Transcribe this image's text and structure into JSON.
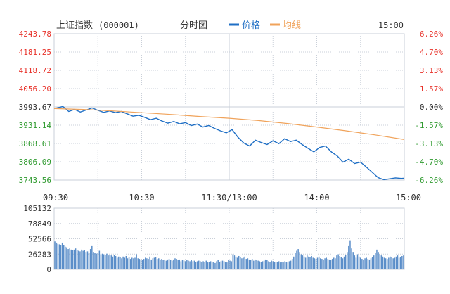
{
  "header": {
    "title": "上证指数",
    "code": "(000001)",
    "mode": "分时图",
    "legend_price": "价格",
    "legend_avg": "均线",
    "time": "15:00"
  },
  "colors": {
    "price_line": "#1f6fc5",
    "avg_line": "#f0a35b",
    "up_label": "#e8322a",
    "down_label": "#2f9a2f",
    "neutral_label": "#333333",
    "grid": "#c9cfd8",
    "volume_bar": "#5b8ec9"
  },
  "chart_data": [
    {
      "type": "line",
      "y_ticks_left": [
        "4243.78",
        "4181.25",
        "4118.72",
        "4056.20",
        "3993.67",
        "3931.14",
        "3868.61",
        "3806.09",
        "3743.56"
      ],
      "y_ticks_right": [
        "6.26%",
        "4.70%",
        "3.13%",
        "1.57%",
        "0.00%",
        "-1.57%",
        "-3.13%",
        "-4.70%",
        "-6.26%"
      ],
      "x_ticks": [
        "09:30",
        "10:30",
        "11:30/13:00",
        "14:00",
        "15:00"
      ],
      "ylim": [
        3743.56,
        4243.78
      ],
      "xlim": [
        0,
        240
      ],
      "series": [
        {
          "name": "价格",
          "x": [
            0,
            6,
            10,
            14,
            18,
            22,
            26,
            30,
            34,
            38,
            42,
            46,
            50,
            54,
            58,
            62,
            66,
            70,
            74,
            78,
            82,
            86,
            90,
            94,
            98,
            102,
            106,
            110,
            114,
            118,
            122,
            126,
            130,
            134,
            138,
            142,
            146,
            150,
            154,
            158,
            162,
            166,
            170,
            174,
            178,
            182,
            186,
            190,
            194,
            198,
            202,
            206,
            210,
            214,
            218,
            222,
            226,
            230,
            234,
            238,
            240
          ],
          "y": [
            3988,
            3995,
            3978,
            3985,
            3976,
            3983,
            3990,
            3982,
            3975,
            3980,
            3974,
            3978,
            3970,
            3962,
            3965,
            3958,
            3950,
            3955,
            3945,
            3938,
            3944,
            3936,
            3940,
            3930,
            3935,
            3925,
            3930,
            3920,
            3912,
            3905,
            3916,
            3890,
            3870,
            3860,
            3880,
            3872,
            3865,
            3878,
            3868,
            3885,
            3875,
            3880,
            3865,
            3852,
            3840,
            3855,
            3860,
            3840,
            3826,
            3805,
            3815,
            3800,
            3805,
            3788,
            3770,
            3752,
            3745,
            3748,
            3751,
            3749,
            3750
          ]
        },
        {
          "name": "均线",
          "x": [
            0,
            20,
            40,
            60,
            80,
            100,
            120,
            140,
            160,
            180,
            200,
            220,
            240
          ],
          "y": [
            3988,
            3985,
            3980,
            3974,
            3968,
            3961,
            3955,
            3947,
            3937,
            3925,
            3912,
            3898,
            3882
          ]
        }
      ]
    },
    {
      "type": "bar",
      "y_ticks": [
        "105132",
        "78849",
        "52566",
        "26283",
        "0"
      ],
      "ylim": [
        0,
        105132
      ],
      "xlim": [
        0,
        240
      ],
      "values": [
        48000,
        46000,
        44000,
        43000,
        42000,
        46000,
        42000,
        39000,
        38000,
        35000,
        36000,
        34000,
        33000,
        34000,
        36000,
        33000,
        32000,
        31000,
        34000,
        32000,
        33000,
        30000,
        31000,
        29000,
        35000,
        40000,
        30000,
        28000,
        27000,
        29000,
        32000,
        26000,
        27000,
        26000,
        25000,
        27000,
        24000,
        25000,
        24000,
        22000,
        25000,
        23000,
        20000,
        22000,
        21000,
        19000,
        22000,
        20000,
        23000,
        19000,
        21000,
        18000,
        20000,
        19000,
        20000,
        26000,
        19000,
        18000,
        17000,
        16000,
        18000,
        20000,
        19000,
        18000,
        22000,
        17000,
        19000,
        20000,
        21000,
        18000,
        19000,
        17000,
        18000,
        16000,
        17000,
        15000,
        17000,
        18000,
        16000,
        15000,
        17000,
        19000,
        18000,
        16000,
        17000,
        14000,
        16000,
        15000,
        14000,
        16000,
        15000,
        14000,
        16000,
        14000,
        15000,
        13000,
        14000,
        15000,
        14000,
        13000,
        14000,
        13000,
        15000,
        12000,
        13000,
        14000,
        12000,
        13000,
        11000,
        14000,
        16000,
        13000,
        14000,
        15000,
        14000,
        13000,
        12000,
        16000,
        15000,
        14000,
        26000,
        24000,
        22000,
        20000,
        23000,
        21000,
        19000,
        20000,
        22000,
        18000,
        19000,
        17000,
        16000,
        18000,
        15000,
        17000,
        16000,
        15000,
        14000,
        13000,
        14000,
        15000,
        17000,
        16000,
        14000,
        13000,
        15000,
        14000,
        13000,
        12000,
        13000,
        14000,
        12000,
        13000,
        12000,
        14000,
        13000,
        12000,
        14000,
        15000,
        18000,
        22000,
        28000,
        32000,
        35000,
        30000,
        26000,
        24000,
        22000,
        20000,
        24000,
        22000,
        21000,
        23000,
        20000,
        19000,
        18000,
        20000,
        22000,
        19000,
        18000,
        17000,
        19000,
        20000,
        18000,
        17000,
        16000,
        18000,
        20000,
        19000,
        24000,
        26000,
        23000,
        21000,
        19000,
        22000,
        25000,
        30000,
        40000,
        50000,
        36000,
        30000,
        24000,
        20000,
        26000,
        22000,
        20000,
        18000,
        17000,
        19000,
        20000,
        18000,
        17000,
        19000,
        21000,
        24000,
        28000,
        34000,
        30000,
        26000,
        24000,
        22000,
        20000,
        19000,
        18000,
        20000,
        22000,
        21000,
        19000,
        20000,
        22000,
        24000,
        20000,
        21000,
        23000,
        24000
      ]
    }
  ]
}
